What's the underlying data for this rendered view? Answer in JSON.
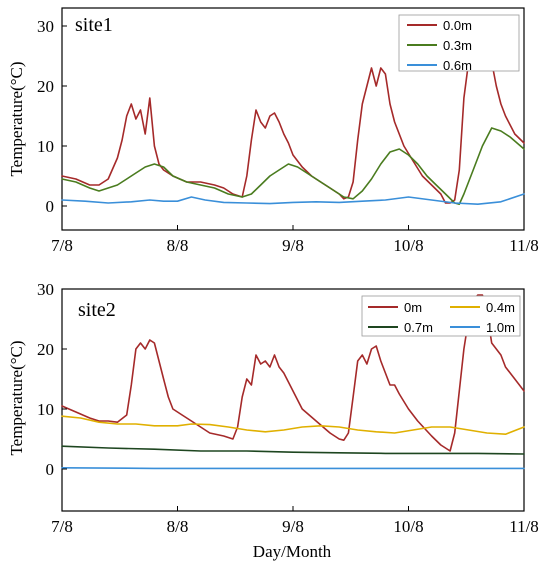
{
  "chart_data": [
    {
      "type": "line",
      "title": "site1",
      "xlabel": "",
      "ylabel": "Temperature(°C)",
      "x_ticks": [
        "7/8",
        "8/8",
        "9/8",
        "10/8",
        "11/8"
      ],
      "y_ticks": [
        0,
        10,
        20,
        30
      ],
      "xlim": [
        "7/8",
        "11/8"
      ],
      "ylim": [
        -4,
        33
      ],
      "x_unit": "days since 7/8",
      "legend": "top-right",
      "series": [
        {
          "name": "0.0m",
          "color": "#a52a2a",
          "points": [
            [
              0,
              5
            ],
            [
              3,
              4.5
            ],
            [
              6,
              3.5
            ],
            [
              8,
              3.5
            ],
            [
              10,
              4.5
            ],
            [
              12,
              8
            ],
            [
              13,
              11
            ],
            [
              14,
              15
            ],
            [
              15,
              17
            ],
            [
              16,
              14.5
            ],
            [
              17,
              16
            ],
            [
              18,
              12
            ],
            [
              19,
              18
            ],
            [
              20,
              10
            ],
            [
              21,
              7
            ],
            [
              22,
              6
            ],
            [
              24,
              5
            ],
            [
              27,
              4
            ],
            [
              30,
              4
            ],
            [
              33,
              3.5
            ],
            [
              35,
              3
            ],
            [
              37,
              2
            ],
            [
              39,
              1.5
            ],
            [
              40,
              5
            ],
            [
              41,
              11
            ],
            [
              42,
              16
            ],
            [
              43,
              14
            ],
            [
              44,
              13
            ],
            [
              45,
              15
            ],
            [
              46,
              15.5
            ],
            [
              47,
              14
            ],
            [
              48,
              12
            ],
            [
              49,
              10.5
            ],
            [
              50,
              8.5
            ],
            [
              52,
              6.5
            ],
            [
              54,
              5
            ],
            [
              56,
              4
            ],
            [
              58,
              3
            ],
            [
              60,
              2
            ],
            [
              61,
              1.2
            ],
            [
              62,
              1.5
            ],
            [
              63,
              4
            ],
            [
              64,
              11
            ],
            [
              65,
              17
            ],
            [
              66,
              20
            ],
            [
              67,
              23
            ],
            [
              68,
              20
            ],
            [
              69,
              23
            ],
            [
              70,
              22
            ],
            [
              71,
              17
            ],
            [
              72,
              14
            ],
            [
              74,
              10
            ],
            [
              76,
              7.5
            ],
            [
              78,
              5
            ],
            [
              80,
              3.5
            ],
            [
              82,
              2
            ],
            [
              83,
              0.5
            ],
            [
              84,
              0.5
            ],
            [
              85,
              1
            ],
            [
              86,
              6
            ],
            [
              87,
              18
            ],
            [
              88,
              24
            ],
            [
              89,
              27
            ],
            [
              90,
              31
            ],
            [
              91,
              31
            ],
            [
              92,
              29
            ],
            [
              93,
              24
            ],
            [
              94,
              20
            ],
            [
              95,
              17
            ],
            [
              96,
              15
            ],
            [
              98,
              12
            ],
            [
              100,
              10.5
            ]
          ]
        },
        {
          "name": "0.3m",
          "color": "#4a7c1f",
          "points": [
            [
              0,
              4.5
            ],
            [
              3,
              4
            ],
            [
              6,
              3
            ],
            [
              8,
              2.5
            ],
            [
              10,
              3
            ],
            [
              12,
              3.5
            ],
            [
              14,
              4.5
            ],
            [
              16,
              5.5
            ],
            [
              18,
              6.5
            ],
            [
              20,
              7
            ],
            [
              22,
              6.5
            ],
            [
              24,
              5
            ],
            [
              27,
              4
            ],
            [
              30,
              3.5
            ],
            [
              33,
              3
            ],
            [
              36,
              2
            ],
            [
              39,
              1.5
            ],
            [
              41,
              2
            ],
            [
              43,
              3.5
            ],
            [
              45,
              5
            ],
            [
              47,
              6
            ],
            [
              49,
              7
            ],
            [
              51,
              6.5
            ],
            [
              53,
              5.5
            ],
            [
              55,
              4.5
            ],
            [
              58,
              3
            ],
            [
              61,
              1.5
            ],
            [
              63,
              1.2
            ],
            [
              65,
              2.5
            ],
            [
              67,
              4.5
            ],
            [
              69,
              7
            ],
            [
              71,
              9
            ],
            [
              73,
              9.5
            ],
            [
              75,
              8.5
            ],
            [
              77,
              7
            ],
            [
              79,
              5
            ],
            [
              81,
              3.5
            ],
            [
              83,
              2
            ],
            [
              85,
              0.5
            ],
            [
              86,
              0.3
            ],
            [
              87,
              2
            ],
            [
              89,
              6
            ],
            [
              91,
              10
            ],
            [
              93,
              13
            ],
            [
              95,
              12.5
            ],
            [
              97,
              11.5
            ],
            [
              100,
              9.5
            ]
          ]
        },
        {
          "name": "0.6m",
          "color": "#3a8fd9",
          "points": [
            [
              0,
              1
            ],
            [
              5,
              0.8
            ],
            [
              10,
              0.5
            ],
            [
              15,
              0.7
            ],
            [
              19,
              1
            ],
            [
              22,
              0.8
            ],
            [
              25,
              0.8
            ],
            [
              28,
              1.5
            ],
            [
              31,
              1
            ],
            [
              35,
              0.6
            ],
            [
              40,
              0.5
            ],
            [
              45,
              0.4
            ],
            [
              50,
              0.6
            ],
            [
              55,
              0.7
            ],
            [
              60,
              0.6
            ],
            [
              65,
              0.8
            ],
            [
              70,
              1
            ],
            [
              75,
              1.5
            ],
            [
              80,
              1
            ],
            [
              85,
              0.5
            ],
            [
              90,
              0.3
            ],
            [
              95,
              0.7
            ],
            [
              100,
              2
            ]
          ]
        }
      ]
    },
    {
      "type": "line",
      "title": "site2",
      "xlabel": "Day/Month",
      "ylabel": "Temperature(°C)",
      "x_ticks": [
        "7/8",
        "8/8",
        "9/8",
        "10/8",
        "11/8"
      ],
      "y_ticks": [
        0,
        10,
        20,
        30
      ],
      "xlim": [
        "7/8",
        "11/8"
      ],
      "ylim": [
        -7,
        30
      ],
      "x_unit": "days since 7/8",
      "legend": "top-right",
      "series": [
        {
          "name": "0m",
          "color": "#a52a2a",
          "points": [
            [
              0,
              10.5
            ],
            [
              3,
              9.5
            ],
            [
              6,
              8.5
            ],
            [
              8,
              8
            ],
            [
              10,
              8
            ],
            [
              12,
              7.8
            ],
            [
              14,
              9
            ],
            [
              15,
              14
            ],
            [
              16,
              20
            ],
            [
              17,
              21
            ],
            [
              18,
              20
            ],
            [
              19,
              21.5
            ],
            [
              20,
              21
            ],
            [
              21,
              18
            ],
            [
              22,
              15
            ],
            [
              23,
              12
            ],
            [
              24,
              10
            ],
            [
              26,
              9
            ],
            [
              28,
              8
            ],
            [
              30,
              7
            ],
            [
              32,
              6
            ],
            [
              35,
              5.5
            ],
            [
              37,
              5
            ],
            [
              38,
              7
            ],
            [
              39,
              12
            ],
            [
              40,
              15
            ],
            [
              41,
              14
            ],
            [
              42,
              19
            ],
            [
              43,
              17.5
            ],
            [
              44,
              18
            ],
            [
              45,
              17
            ],
            [
              46,
              19
            ],
            [
              47,
              17
            ],
            [
              48,
              16
            ],
            [
              50,
              13
            ],
            [
              52,
              10
            ],
            [
              55,
              8
            ],
            [
              58,
              6
            ],
            [
              60,
              5
            ],
            [
              61,
              4.8
            ],
            [
              62,
              6
            ],
            [
              63,
              12
            ],
            [
              64,
              18
            ],
            [
              65,
              19
            ],
            [
              66,
              17.5
            ],
            [
              67,
              20
            ],
            [
              68,
              20.5
            ],
            [
              69,
              18
            ],
            [
              70,
              16
            ],
            [
              71,
              14
            ],
            [
              72,
              14
            ],
            [
              73,
              12.5
            ],
            [
              75,
              10
            ],
            [
              77,
              8
            ],
            [
              80,
              5.5
            ],
            [
              82,
              4
            ],
            [
              83,
              3.5
            ],
            [
              84,
              3
            ],
            [
              85,
              6
            ],
            [
              86,
              13
            ],
            [
              87,
              20
            ],
            [
              88,
              25
            ],
            [
              89,
              28
            ],
            [
              90,
              29
            ],
            [
              91,
              29
            ],
            [
              92,
              26
            ],
            [
              93,
              21
            ],
            [
              94,
              20
            ],
            [
              95,
              19
            ],
            [
              96,
              17
            ],
            [
              98,
              15
            ],
            [
              100,
              13
            ]
          ]
        },
        {
          "name": "0.4m",
          "color": "#e0b000",
          "points": [
            [
              0,
              8.8
            ],
            [
              4,
              8.5
            ],
            [
              8,
              7.8
            ],
            [
              12,
              7.5
            ],
            [
              16,
              7.5
            ],
            [
              20,
              7.2
            ],
            [
              25,
              7.2
            ],
            [
              28,
              7.5
            ],
            [
              32,
              7.4
            ],
            [
              36,
              7
            ],
            [
              40,
              6.5
            ],
            [
              44,
              6.2
            ],
            [
              48,
              6.5
            ],
            [
              52,
              7
            ],
            [
              56,
              7.2
            ],
            [
              60,
              7
            ],
            [
              64,
              6.5
            ],
            [
              68,
              6.2
            ],
            [
              72,
              6
            ],
            [
              76,
              6.5
            ],
            [
              80,
              7
            ],
            [
              84,
              7
            ],
            [
              88,
              6.5
            ],
            [
              92,
              6
            ],
            [
              96,
              5.8
            ],
            [
              100,
              7
            ]
          ]
        },
        {
          "name": "0.7m",
          "color": "#1e4620",
          "points": [
            [
              0,
              3.8
            ],
            [
              10,
              3.5
            ],
            [
              20,
              3.3
            ],
            [
              30,
              3
            ],
            [
              40,
              3
            ],
            [
              50,
              2.8
            ],
            [
              60,
              2.7
            ],
            [
              70,
              2.6
            ],
            [
              80,
              2.6
            ],
            [
              90,
              2.6
            ],
            [
              100,
              2.5
            ]
          ]
        },
        {
          "name": "1.0m",
          "color": "#3a8fd9",
          "points": [
            [
              0,
              0.2
            ],
            [
              20,
              0.1
            ],
            [
              40,
              0.1
            ],
            [
              60,
              0.1
            ],
            [
              80,
              0.1
            ],
            [
              100,
              0.1
            ]
          ]
        }
      ]
    }
  ]
}
